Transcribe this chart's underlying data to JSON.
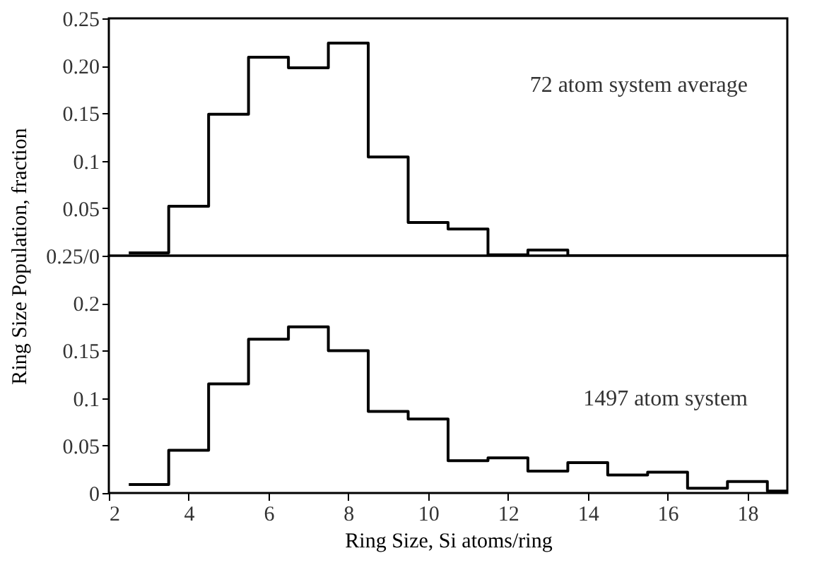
{
  "chart_data": [
    {
      "type": "histogram",
      "bins": [
        2.5,
        3.5,
        4.5,
        5.5,
        6.5,
        7.5,
        8.5,
        9.5,
        10.5,
        11.5,
        12.5,
        13.5,
        14.5,
        15.5,
        16.5,
        17.5,
        18.5,
        19
      ],
      "values": [
        0.003,
        0.052,
        0.149,
        0.209,
        0.198,
        0.224,
        0.104,
        0.035,
        0.028,
        0.001,
        0.006,
        0,
        0,
        0,
        0,
        0,
        0
      ],
      "color": "#000000",
      "xlim": [
        2,
        19
      ],
      "ylim": [
        0,
        0.25
      ],
      "yticks": [
        {
          "value": 0,
          "label": "0.25/0"
        },
        0.05,
        0.1,
        0.15,
        {
          "value": 0.2,
          "label": "0.20"
        },
        0.25
      ],
      "tick_labels": "y",
      "grid": false,
      "annotations": [
        "72 atom system average"
      ]
    },
    {
      "type": "histogram",
      "bins": [
        2.5,
        3.5,
        4.5,
        5.5,
        6.5,
        7.5,
        8.5,
        9.5,
        10.5,
        11.5,
        12.5,
        13.5,
        14.5,
        15.5,
        16.5,
        17.5,
        18.5,
        19
      ],
      "values": [
        0.009,
        0.045,
        0.115,
        0.162,
        0.175,
        0.15,
        0.086,
        0.078,
        0.034,
        0.037,
        0.023,
        0.032,
        0.019,
        0.022,
        0.005,
        0.012,
        0.002
      ],
      "color": "#000000",
      "xlim": [
        2,
        19
      ],
      "ylim": [
        0,
        0.25
      ],
      "xticks": [
        2,
        4,
        6,
        8,
        10,
        12,
        14,
        16,
        18
      ],
      "yticks": [
        0,
        0.05,
        0.1,
        0.15,
        0.2,
        {
          "value": 0.25,
          "label": null
        }
      ],
      "xlabel": "Ring Size, Si atoms/ring",
      "ylabel": "Ring Size Population, fraction",
      "grid": false,
      "annotations": [
        "1497 atom system"
      ]
    }
  ]
}
